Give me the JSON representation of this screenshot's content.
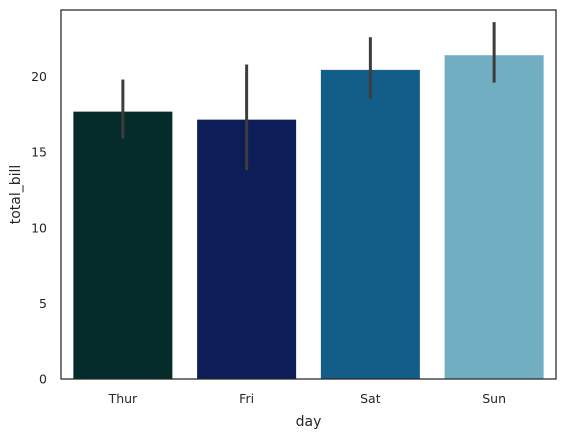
{
  "chart_data": {
    "type": "bar",
    "categories": [
      "Thur",
      "Fri",
      "Sat",
      "Sun"
    ],
    "values": [
      17.68,
      17.15,
      20.44,
      21.41
    ],
    "error_low": [
      15.9,
      13.8,
      18.5,
      19.6
    ],
    "error_high": [
      19.8,
      20.8,
      22.6,
      23.6
    ],
    "colors": [
      "#052b2a",
      "#0d1d57",
      "#135e88",
      "#72aec1"
    ],
    "errorbar_color": "#3d3d3d",
    "xlabel": "day",
    "ylabel": "total_bill",
    "ylim": [
      0,
      24.4
    ],
    "yticks": [
      0,
      5,
      10,
      15,
      20
    ],
    "grid": false,
    "legend": false
  }
}
